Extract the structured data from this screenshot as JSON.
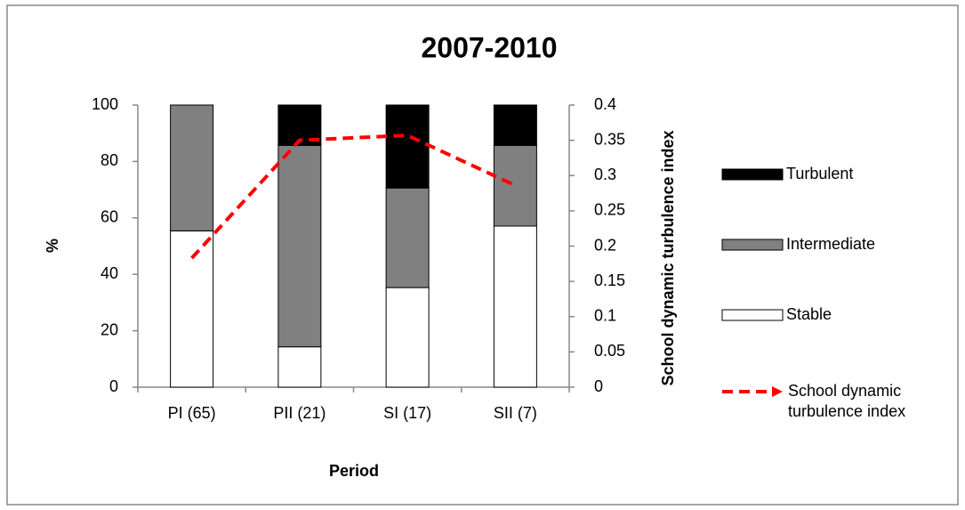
{
  "chart_data": {
    "type": "bar",
    "stacked": true,
    "title": "2007-2010",
    "x_label": "Period",
    "y_label": "%",
    "y2_label": "School dynamic turbulence index",
    "categories": [
      "PI (65)",
      "PII (21)",
      "SI (17)",
      "SII (7)"
    ],
    "series": [
      {
        "name": "Stable",
        "color": "#ffffff",
        "values": [
          55.4,
          14.3,
          35.3,
          57.1
        ]
      },
      {
        "name": "Intermediate",
        "color": "#808080",
        "values": [
          44.6,
          71.4,
          35.3,
          28.6
        ]
      },
      {
        "name": "Turbulent",
        "color": "#000000",
        "values": [
          0,
          14.3,
          29.4,
          14.3
        ]
      },
      {
        "name": "School dynamic turbulence index",
        "type": "line",
        "axis": "y2",
        "color": "#ff0000",
        "dashed": true,
        "values": [
          0.183,
          0.35,
          0.357,
          0.286
        ]
      }
    ],
    "ylim": [
      0,
      100
    ],
    "yticks": [
      0,
      20,
      40,
      60,
      80,
      100
    ],
    "y2lim": [
      0,
      0.4
    ],
    "y2ticks": [
      0,
      0.05,
      0.1,
      0.15,
      0.2,
      0.25,
      0.3,
      0.35,
      0.4
    ],
    "grid": false,
    "legend": "right"
  }
}
